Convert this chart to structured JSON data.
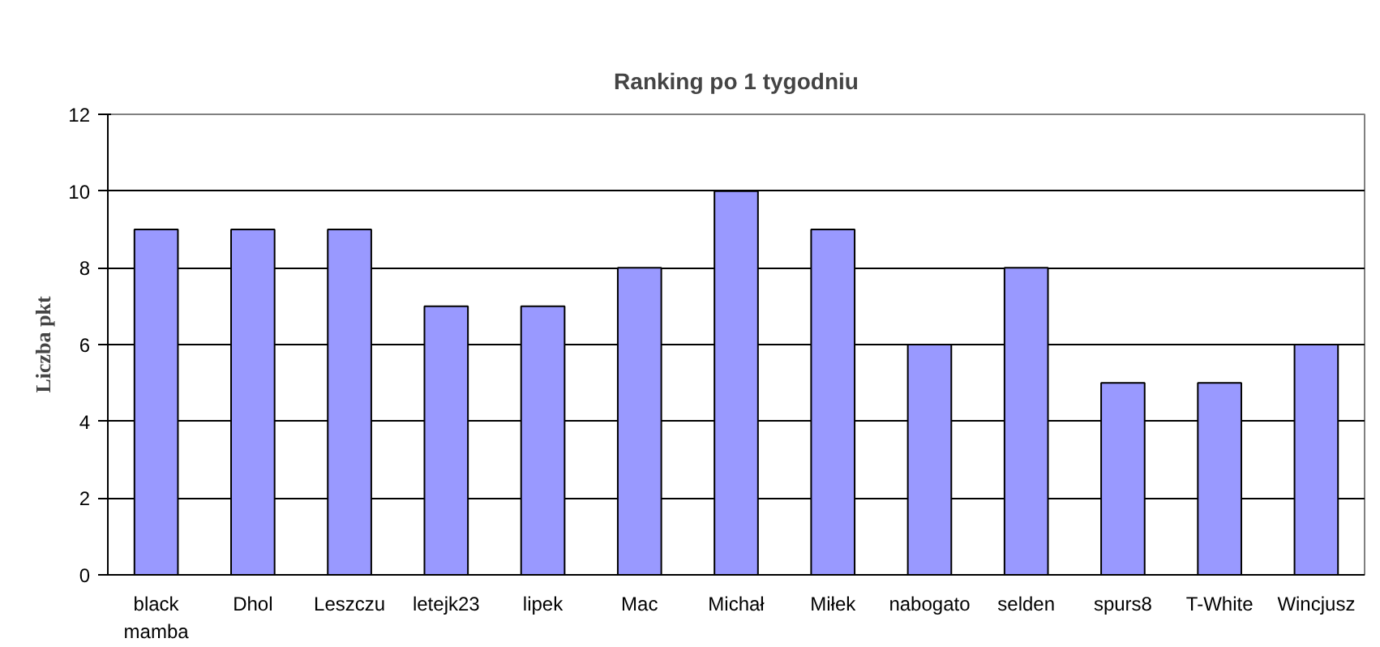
{
  "chart_data": {
    "type": "bar",
    "title": "Ranking po 1 tygodniu",
    "ylabel": "Liczba pkt",
    "categories": [
      "black mamba",
      "Dhol",
      "Leszczu",
      "letejk23",
      "lipek",
      "Mac",
      "Michał",
      "Miłek",
      "nabogato",
      "selden",
      "spurs8",
      "T-White",
      "Wincjusz"
    ],
    "values": [
      9,
      9,
      9,
      7,
      7,
      8,
      10,
      9,
      6,
      8,
      5,
      5,
      6
    ],
    "color": "#9999ff",
    "ylim": [
      0,
      12
    ],
    "yticks": [
      0,
      2,
      4,
      6,
      8,
      10,
      12
    ],
    "grid": "y"
  }
}
